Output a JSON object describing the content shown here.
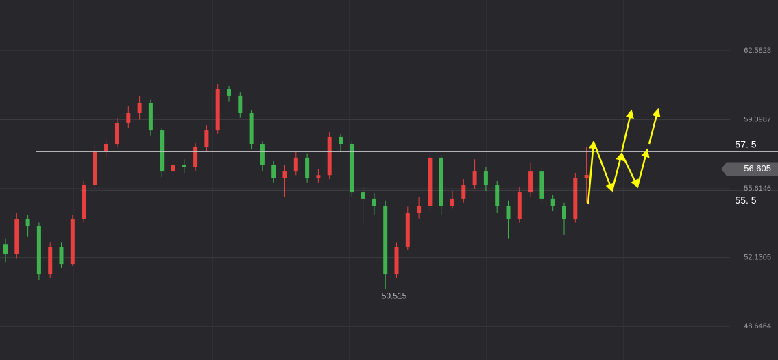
{
  "chart_data": {
    "type": "candlestick",
    "ylim": [
      46.95,
      65.15
    ],
    "yticks": [
      62.5828,
      59.0987,
      55.6146,
      52.1305,
      48.6464
    ],
    "up_color": "#e8403f",
    "down_color": "#3fb34f",
    "open": [
      52.8,
      52.32,
      54.06,
      53.71,
      51.28,
      52.67,
      51.8,
      54.06,
      55.79,
      57.52,
      57.87,
      58.91,
      59.43,
      59.95,
      58.56,
      56.48,
      56.83,
      56.7,
      57.7,
      58.56,
      60.64,
      60.3,
      59.43,
      57.87,
      56.83,
      56.14,
      56.48,
      57.18,
      56.14,
      56.3,
      58.22,
      57.87,
      55.44,
      55.1,
      54.75,
      51.28,
      52.67,
      54.4,
      54.75,
      57.18,
      54.75,
      55.1,
      55.79,
      56.48,
      55.79,
      54.75,
      54.06,
      55.44,
      56.48,
      55.1,
      54.75,
      54.06,
      56.14
    ],
    "high": [
      53.1,
      54.4,
      54.3,
      53.9,
      52.9,
      52.9,
      54.3,
      56.0,
      57.8,
      58.1,
      59.2,
      59.8,
      60.3,
      60.1,
      58.7,
      57.2,
      57.1,
      57.9,
      58.8,
      60.9,
      60.8,
      60.5,
      59.6,
      58.0,
      57.0,
      56.8,
      57.5,
      57.4,
      56.6,
      58.5,
      58.4,
      58.0,
      55.7,
      55.4,
      55.0,
      52.9,
      54.7,
      55.2,
      57.5,
      57.3,
      55.5,
      56.1,
      57.1,
      56.7,
      56.0,
      55.0,
      55.7,
      56.9,
      56.7,
      55.3,
      54.9,
      56.4,
      57.7
    ],
    "low": [
      51.9,
      52.1,
      53.2,
      51.0,
      51.1,
      51.6,
      51.7,
      53.9,
      55.6,
      57.2,
      57.7,
      58.7,
      59.1,
      58.3,
      56.2,
      56.3,
      56.4,
      56.5,
      57.5,
      58.4,
      60.0,
      59.2,
      57.6,
      56.5,
      55.9,
      55.2,
      56.3,
      55.9,
      55.9,
      56.1,
      57.5,
      55.2,
      53.8,
      54.3,
      50.515,
      51.1,
      52.5,
      54.1,
      54.5,
      54.3,
      54.6,
      54.9,
      55.6,
      55.5,
      54.4,
      53.1,
      53.9,
      55.2,
      54.9,
      54.5,
      53.3,
      53.9,
      54.9
    ],
    "close": [
      52.32,
      54.06,
      53.71,
      51.28,
      52.67,
      51.8,
      54.06,
      55.79,
      57.52,
      57.87,
      58.91,
      59.43,
      59.95,
      58.56,
      56.48,
      56.83,
      56.7,
      57.7,
      58.56,
      60.64,
      60.3,
      59.43,
      57.87,
      56.83,
      56.14,
      56.48,
      57.18,
      56.14,
      56.3,
      58.22,
      57.87,
      55.44,
      55.1,
      54.75,
      51.28,
      52.67,
      54.4,
      54.75,
      57.18,
      54.75,
      55.1,
      55.79,
      56.48,
      55.79,
      54.75,
      54.06,
      55.44,
      56.48,
      55.1,
      54.75,
      54.06,
      56.14,
      56.31
    ],
    "levels": [
      {
        "value": 57.5,
        "label": "57. 5"
      },
      {
        "value": 55.5,
        "label": "55. 5"
      }
    ],
    "current_price": 56.605,
    "low_label": 50.515
  }
}
